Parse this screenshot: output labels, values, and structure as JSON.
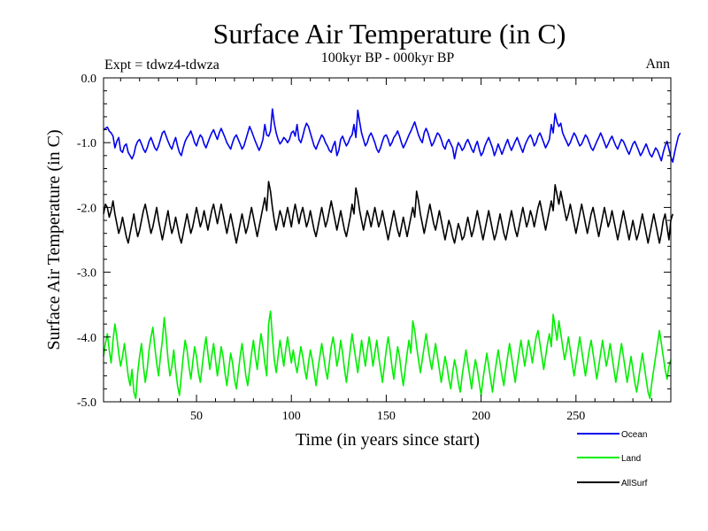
{
  "chart_data": {
    "type": "line",
    "title": "Surface Air Temperature (in C)",
    "subtitle": "100kyr BP - 000kyr BP",
    "experiment_label": "Expt = tdwz4-tdwza",
    "season_label": "Ann",
    "xlabel": "Time (in years since start)",
    "ylabel": "Surface Air Temperature (in C)",
    "xlim": [
      1,
      300
    ],
    "ylim": [
      -5.0,
      0.0
    ],
    "x_ticks": [
      50,
      100,
      150,
      200,
      250
    ],
    "x_tick_labels": [
      "50",
      "100",
      "150",
      "200",
      "250"
    ],
    "y_ticks": [
      0.0,
      -1.0,
      -2.0,
      -3.0,
      -4.0,
      -5.0
    ],
    "y_tick_labels": [
      "0.0",
      "-1.0",
      "-2.0",
      "-3.0",
      "-4.0",
      "-5.0"
    ],
    "series": [
      {
        "name": "Ocean",
        "color": "#0000ee",
        "values": [
          -0.8,
          -0.78,
          -0.76,
          -0.82,
          -0.85,
          -0.9,
          -1.08,
          -0.98,
          -0.92,
          -1.12,
          -1.15,
          -1.05,
          -1.02,
          -1.15,
          -1.2,
          -1.25,
          -1.18,
          -1.05,
          -0.98,
          -0.95,
          -1.02,
          -1.1,
          -1.15,
          -1.08,
          -0.98,
          -0.92,
          -1.0,
          -1.08,
          -1.12,
          -1.05,
          -0.95,
          -0.85,
          -0.82,
          -0.9,
          -0.98,
          -1.05,
          -1.1,
          -1.0,
          -0.92,
          -1.05,
          -1.15,
          -1.2,
          -1.08,
          -0.98,
          -0.92,
          -0.88,
          -0.82,
          -0.9,
          -1.0,
          -1.05,
          -0.95,
          -0.88,
          -0.92,
          -1.02,
          -1.08,
          -1.0,
          -0.92,
          -0.85,
          -0.8,
          -0.88,
          -0.95,
          -0.85,
          -0.78,
          -0.85,
          -0.92,
          -1.0,
          -1.05,
          -1.1,
          -1.0,
          -0.92,
          -0.88,
          -0.95,
          -1.02,
          -1.1,
          -1.05,
          -0.95,
          -0.85,
          -0.75,
          -0.82,
          -0.9,
          -0.98,
          -1.05,
          -1.12,
          -1.05,
          -0.95,
          -0.72,
          -0.88,
          -0.9,
          -0.82,
          -0.48,
          -0.7,
          -0.85,
          -0.95,
          -1.02,
          -0.98,
          -0.92,
          -0.95,
          -1.0,
          -0.95,
          -0.85,
          -0.82,
          -0.9,
          -0.72,
          -0.95,
          -1.0,
          -0.9,
          -0.78,
          -0.7,
          -0.75,
          -0.85,
          -0.95,
          -1.05,
          -1.1,
          -1.02,
          -0.95,
          -0.88,
          -0.92,
          -1.0,
          -1.05,
          -1.12,
          -1.15,
          -1.05,
          -0.98,
          -1.2,
          -1.12,
          -0.95,
          -0.9,
          -0.98,
          -1.05,
          -1.0,
          -0.92,
          -0.88,
          -0.72,
          -0.92,
          -0.5,
          -0.68,
          -0.85,
          -0.95,
          -1.05,
          -1.0,
          -0.9,
          -0.85,
          -0.92,
          -1.0,
          -1.1,
          -1.15,
          -1.08,
          -0.98,
          -0.9,
          -0.88,
          -0.95,
          -1.05,
          -1.0,
          -0.92,
          -0.88,
          -0.82,
          -0.9,
          -1.0,
          -1.08,
          -1.02,
          -0.95,
          -0.88,
          -0.82,
          -0.75,
          -0.68,
          -0.78,
          -0.88,
          -0.95,
          -1.0,
          -0.85,
          -0.78,
          -0.85,
          -0.95,
          -1.05,
          -1.0,
          -0.92,
          -0.85,
          -0.88,
          -0.95,
          -1.05,
          -1.1,
          -1.0,
          -0.95,
          -1.02,
          -1.08,
          -1.25,
          -1.1,
          -1.0,
          -1.05,
          -1.12,
          -1.08,
          -1.0,
          -0.95,
          -1.02,
          -1.1,
          -1.15,
          -1.05,
          -0.98,
          -1.1,
          -1.2,
          -1.15,
          -1.05,
          -0.98,
          -0.92,
          -1.0,
          -1.08,
          -1.2,
          -1.12,
          -1.02,
          -1.1,
          -1.18,
          -1.1,
          -1.02,
          -0.95,
          -1.05,
          -1.12,
          -1.05,
          -0.98,
          -0.92,
          -1.0,
          -1.08,
          -1.15,
          -1.05,
          -0.98,
          -0.92,
          -0.88,
          -0.95,
          -1.05,
          -1.0,
          -0.9,
          -0.85,
          -0.92,
          -1.0,
          -1.08,
          -1.02,
          -0.95,
          -0.72,
          -0.85,
          -0.55,
          -0.68,
          -0.75,
          -0.7,
          -0.85,
          -0.92,
          -0.98,
          -1.05,
          -1.0,
          -0.92,
          -0.85,
          -0.9,
          -0.98,
          -1.05,
          -1.02,
          -0.95,
          -0.88,
          -0.92,
          -1.0,
          -1.08,
          -1.12,
          -1.05,
          -0.98,
          -0.92,
          -0.85,
          -0.92,
          -1.0,
          -1.08,
          -1.02,
          -0.95,
          -0.9,
          -0.98,
          -1.05,
          -1.1,
          -1.02,
          -0.95,
          -0.98,
          -1.05,
          -1.12,
          -1.18,
          -1.1,
          -1.02,
          -0.98,
          -1.05,
          -1.12,
          -1.2,
          -1.15,
          -1.08,
          -1.02,
          -1.1,
          -1.18,
          -1.22,
          -1.15,
          -1.08,
          -1.12,
          -1.2,
          -1.28,
          -1.15,
          -1.05,
          -0.98,
          -1.1,
          -1.22,
          -1.3,
          -1.15,
          -1.02,
          -0.9,
          -0.85
        ]
      },
      {
        "name": "Land",
        "color": "#00ee00",
        "values": [
          -4.3,
          -4.1,
          -3.95,
          -4.2,
          -4.4,
          -4.05,
          -3.8,
          -4.0,
          -4.25,
          -4.45,
          -4.3,
          -4.1,
          -4.35,
          -4.6,
          -4.75,
          -4.5,
          -4.85,
          -4.95,
          -4.55,
          -4.3,
          -4.1,
          -4.45,
          -4.7,
          -4.5,
          -4.2,
          -4.0,
          -3.85,
          -4.15,
          -4.4,
          -4.6,
          -4.3,
          -4.05,
          -3.7,
          -4.0,
          -4.35,
          -4.6,
          -4.45,
          -4.2,
          -4.5,
          -4.75,
          -4.9,
          -4.6,
          -4.3,
          -4.05,
          -4.2,
          -4.45,
          -4.65,
          -4.4,
          -4.15,
          -4.3,
          -4.55,
          -4.7,
          -4.45,
          -4.2,
          -4.0,
          -4.25,
          -4.5,
          -4.3,
          -4.1,
          -4.35,
          -4.6,
          -4.4,
          -4.15,
          -4.3,
          -4.55,
          -4.75,
          -4.5,
          -4.25,
          -4.4,
          -4.65,
          -4.8,
          -4.55,
          -4.3,
          -4.1,
          -4.35,
          -4.6,
          -4.75,
          -4.5,
          -4.25,
          -4.05,
          -4.3,
          -4.5,
          -4.2,
          -3.95,
          -4.15,
          -4.4,
          -4.6,
          -3.8,
          -3.6,
          -4.0,
          -4.35,
          -4.55,
          -4.3,
          -4.05,
          -4.25,
          -4.45,
          -4.2,
          -4.0,
          -4.2,
          -4.4,
          -4.2,
          -4.4,
          -4.55,
          -4.35,
          -4.15,
          -4.3,
          -4.5,
          -4.65,
          -4.4,
          -4.2,
          -4.35,
          -4.55,
          -4.75,
          -4.5,
          -4.3,
          -4.1,
          -4.3,
          -4.5,
          -4.65,
          -4.4,
          -4.15,
          -4.0,
          -4.2,
          -4.45,
          -4.3,
          -4.05,
          -4.25,
          -4.5,
          -4.7,
          -4.45,
          -4.2,
          -3.95,
          -4.15,
          -4.35,
          -4.55,
          -4.3,
          -4.05,
          -4.25,
          -4.45,
          -4.2,
          -4.0,
          -4.2,
          -4.45,
          -4.25,
          -4.05,
          -4.3,
          -4.5,
          -4.7,
          -4.45,
          -4.2,
          -4.0,
          -4.2,
          -4.45,
          -4.65,
          -4.4,
          -4.15,
          -4.3,
          -4.55,
          -4.75,
          -4.5,
          -4.25,
          -4.05,
          -4.25,
          -3.75,
          -3.9,
          -4.15,
          -4.35,
          -4.55,
          -4.35,
          -4.15,
          -3.95,
          -4.15,
          -4.35,
          -4.5,
          -4.3,
          -4.1,
          -4.3,
          -4.5,
          -4.7,
          -4.5,
          -4.3,
          -4.45,
          -4.65,
          -4.8,
          -4.55,
          -4.35,
          -4.5,
          -4.7,
          -4.85,
          -4.6,
          -4.4,
          -4.2,
          -4.4,
          -4.6,
          -4.8,
          -4.55,
          -4.35,
          -4.5,
          -4.7,
          -4.9,
          -4.65,
          -4.45,
          -4.25,
          -4.45,
          -4.65,
          -4.85,
          -4.6,
          -4.4,
          -4.2,
          -4.4,
          -4.6,
          -4.75,
          -4.5,
          -4.3,
          -4.1,
          -4.3,
          -4.5,
          -4.7,
          -4.45,
          -4.25,
          -4.05,
          -4.25,
          -4.45,
          -4.25,
          -4.05,
          -4.2,
          -4.4,
          -4.2,
          -4.0,
          -3.9,
          -4.1,
          -4.3,
          -4.5,
          -4.3,
          -4.1,
          -3.95,
          -4.15,
          -3.65,
          -3.85,
          -4.05,
          -3.75,
          -3.95,
          -4.15,
          -4.35,
          -4.2,
          -4.0,
          -4.2,
          -4.4,
          -4.6,
          -4.4,
          -4.2,
          -4.0,
          -4.2,
          -4.4,
          -4.6,
          -4.4,
          -4.2,
          -4.05,
          -4.25,
          -4.45,
          -4.65,
          -4.45,
          -4.25,
          -4.05,
          -4.25,
          -4.45,
          -4.3,
          -4.1,
          -4.3,
          -4.5,
          -4.7,
          -4.5,
          -4.3,
          -4.1,
          -4.3,
          -4.5,
          -4.7,
          -4.5,
          -4.3,
          -4.5,
          -4.7,
          -4.85,
          -4.65,
          -4.45,
          -4.25,
          -4.45,
          -4.65,
          -4.85,
          -4.95,
          -4.7,
          -4.5,
          -4.3,
          -4.1,
          -3.9,
          -4.1,
          -4.3,
          -4.5,
          -4.65,
          -4.45,
          -4.35
        ]
      },
      {
        "name": "AllSurf",
        "color": "#000000",
        "values": [
          -2.1,
          -1.95,
          -2.0,
          -2.15,
          -2.05,
          -1.9,
          -2.1,
          -2.25,
          -2.4,
          -2.3,
          -2.15,
          -2.3,
          -2.45,
          -2.55,
          -2.4,
          -2.25,
          -2.1,
          -2.3,
          -2.45,
          -2.35,
          -2.2,
          -2.05,
          -1.95,
          -2.1,
          -2.25,
          -2.4,
          -2.3,
          -2.15,
          -2.0,
          -2.2,
          -2.35,
          -2.5,
          -2.35,
          -2.2,
          -2.05,
          -2.25,
          -2.4,
          -2.3,
          -2.15,
          -2.3,
          -2.45,
          -2.55,
          -2.4,
          -2.25,
          -2.1,
          -2.25,
          -2.4,
          -2.3,
          -2.15,
          -2.0,
          -2.15,
          -2.3,
          -2.2,
          -2.05,
          -2.2,
          -2.35,
          -2.2,
          -2.05,
          -1.95,
          -2.1,
          -2.25,
          -2.1,
          -1.95,
          -2.1,
          -2.25,
          -2.4,
          -2.25,
          -2.1,
          -2.25,
          -2.4,
          -2.55,
          -2.4,
          -2.25,
          -2.1,
          -2.25,
          -2.4,
          -2.3,
          -2.15,
          -2.0,
          -2.15,
          -2.3,
          -2.45,
          -2.3,
          -2.15,
          -2.0,
          -1.85,
          -2.05,
          -1.6,
          -1.75,
          -2.0,
          -2.2,
          -2.35,
          -2.2,
          -2.05,
          -2.15,
          -2.3,
          -2.15,
          -2.0,
          -2.15,
          -2.3,
          -2.1,
          -1.95,
          -2.1,
          -2.25,
          -2.1,
          -2.0,
          -2.15,
          -2.3,
          -2.2,
          -2.05,
          -2.2,
          -2.35,
          -2.45,
          -2.3,
          -2.15,
          -2.0,
          -2.15,
          -2.3,
          -2.2,
          -2.05,
          -1.9,
          -2.05,
          -2.2,
          -2.35,
          -2.2,
          -2.05,
          -2.2,
          -2.35,
          -2.45,
          -2.3,
          -2.15,
          -1.95,
          -2.1,
          -1.7,
          -1.85,
          -2.05,
          -2.2,
          -2.35,
          -2.2,
          -2.05,
          -2.15,
          -2.3,
          -2.15,
          -2.0,
          -2.15,
          -2.3,
          -2.2,
          -2.05,
          -2.2,
          -2.35,
          -2.5,
          -2.35,
          -2.2,
          -2.05,
          -2.2,
          -2.35,
          -2.45,
          -2.3,
          -2.15,
          -2.3,
          -2.45,
          -2.3,
          -2.15,
          -2.0,
          -2.15,
          -1.75,
          -1.9,
          -2.1,
          -2.25,
          -2.4,
          -2.25,
          -2.1,
          -1.95,
          -2.1,
          -2.25,
          -2.35,
          -2.2,
          -2.05,
          -2.2,
          -2.35,
          -2.5,
          -2.35,
          -2.2,
          -2.3,
          -2.45,
          -2.55,
          -2.4,
          -2.25,
          -2.35,
          -2.5,
          -2.45,
          -2.3,
          -2.15,
          -2.3,
          -2.45,
          -2.35,
          -2.2,
          -2.05,
          -2.2,
          -2.35,
          -2.5,
          -2.35,
          -2.2,
          -2.05,
          -2.2,
          -2.35,
          -2.5,
          -2.4,
          -2.25,
          -2.1,
          -2.25,
          -2.4,
          -2.5,
          -2.35,
          -2.2,
          -2.05,
          -2.2,
          -2.35,
          -2.45,
          -2.3,
          -2.15,
          -2.0,
          -2.15,
          -2.3,
          -2.2,
          -2.05,
          -2.15,
          -2.3,
          -2.15,
          -2.0,
          -1.9,
          -2.05,
          -2.2,
          -2.35,
          -2.2,
          -2.05,
          -1.9,
          -2.05,
          -1.65,
          -1.8,
          -1.95,
          -1.75,
          -1.9,
          -2.05,
          -2.2,
          -2.1,
          -1.95,
          -2.1,
          -2.25,
          -2.4,
          -2.25,
          -2.1,
          -1.95,
          -2.1,
          -2.25,
          -2.4,
          -2.25,
          -2.1,
          -2.0,
          -2.15,
          -2.3,
          -2.45,
          -2.3,
          -2.15,
          -2.0,
          -2.15,
          -2.3,
          -2.2,
          -2.05,
          -2.2,
          -2.35,
          -2.5,
          -2.35,
          -2.2,
          -2.05,
          -2.2,
          -2.35,
          -2.5,
          -2.35,
          -2.2,
          -2.35,
          -2.5,
          -2.4,
          -2.25,
          -2.1,
          -2.25,
          -2.4,
          -2.55,
          -2.4,
          -2.25,
          -2.1,
          -2.25,
          -2.4,
          -2.55,
          -2.4,
          -2.2,
          -2.1,
          -2.3,
          -2.5,
          -2.2,
          -2.1
        ]
      }
    ],
    "legend": {
      "position": "bottom-right",
      "order": [
        "Ocean",
        "Land",
        "AllSurf"
      ]
    },
    "grid": false
  }
}
